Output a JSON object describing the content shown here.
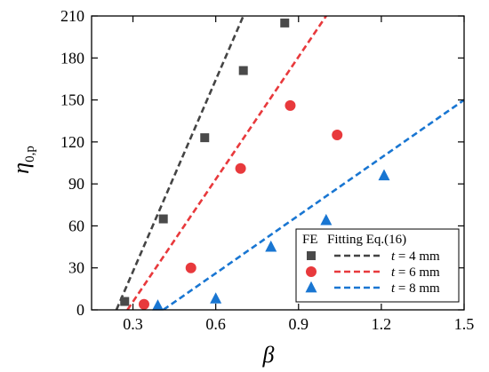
{
  "chart_data": {
    "type": "scatter",
    "xlabel": "β",
    "ylabel": "η",
    "ylabel_sub": "0,p",
    "xlim": [
      0.15,
      1.5
    ],
    "ylim": [
      0,
      210
    ],
    "xticks": [
      0.3,
      0.6,
      0.9,
      1.2,
      1.5
    ],
    "xtick_labels": [
      "0.3",
      "0.6",
      "0.9",
      "1.2",
      "1.5"
    ],
    "yticks": [
      0,
      30,
      60,
      90,
      120,
      150,
      180,
      210
    ],
    "ytick_labels": [
      "0",
      "30",
      "60",
      "90",
      "120",
      "150",
      "180",
      "210"
    ],
    "grid": false,
    "legend_position": "bottom-right",
    "legend_header_fe": "FE",
    "legend_header_fit": "Fitting Eq.(16)",
    "series": [
      {
        "kind": "fe",
        "marker": "square",
        "color": "#4a4a4a",
        "x": [
          0.27,
          0.41,
          0.56,
          0.7,
          0.85
        ],
        "y": [
          6,
          65,
          123,
          171,
          205
        ]
      },
      {
        "kind": "fe",
        "marker": "circle",
        "color": "#e8393c",
        "x": [
          0.34,
          0.51,
          0.69,
          0.87,
          1.04
        ],
        "y": [
          4,
          30,
          101,
          146,
          125
        ]
      },
      {
        "kind": "fe",
        "marker": "triangle",
        "color": "#1976d2",
        "x": [
          0.39,
          0.6,
          0.8,
          1.0,
          1.21
        ],
        "y": [
          3,
          8,
          45,
          64,
          96
        ]
      },
      {
        "kind": "fit",
        "name_prefix": "t",
        "name_suffix": " = 4 mm",
        "color": "#444444",
        "x": [
          0.24,
          0.7
        ],
        "y": [
          0,
          210
        ]
      },
      {
        "kind": "fit",
        "name_prefix": "t",
        "name_suffix": " = 6 mm",
        "color": "#e8393c",
        "x": [
          0.28,
          1.0
        ],
        "y": [
          0,
          210
        ]
      },
      {
        "kind": "fit",
        "name_prefix": "t",
        "name_suffix": " = 8 mm",
        "color": "#1976d2",
        "x": [
          0.41,
          1.5
        ],
        "y": [
          0,
          150
        ]
      }
    ]
  }
}
